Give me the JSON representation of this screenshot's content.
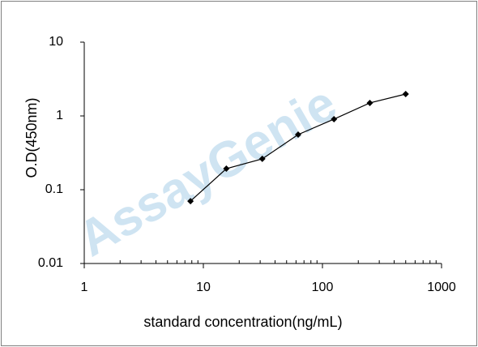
{
  "chart_data": {
    "type": "line",
    "x": [
      7.8,
      15.6,
      31.25,
      62.5,
      125,
      250,
      500
    ],
    "values": [
      0.07,
      0.193,
      0.262,
      0.559,
      0.904,
      1.5,
      1.98
    ],
    "color": "#000000",
    "xlabel": "standard concentration(ng/mL)",
    "ylabel": "O.D(450nm)",
    "xscale": "log",
    "yscale": "log",
    "xlim": [
      1,
      1000
    ],
    "ylim": [
      0.01,
      10
    ],
    "xticks": [
      1,
      10,
      100,
      1000
    ],
    "yticks": [
      0.01,
      0.1,
      1,
      10
    ],
    "watermark": "AssayGenie"
  }
}
